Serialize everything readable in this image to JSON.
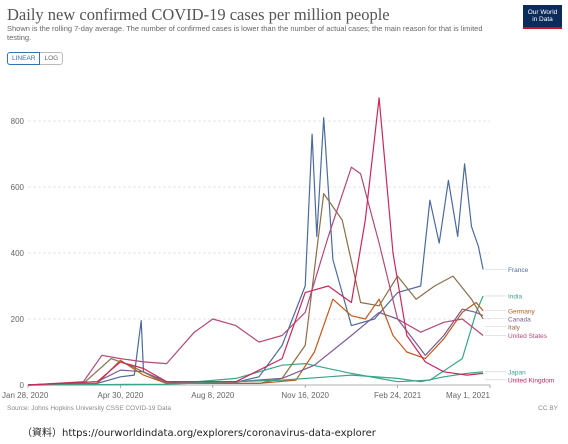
{
  "header": {
    "title": "Daily new confirmed COVID-19 cases per million people",
    "subtitle": "Shown is the rolling 7-day average. The number of confirmed cases is lower than the number of actual cases; the main reason for that is limited testing.",
    "logo_line1": "Our World",
    "logo_line2": "in Data"
  },
  "controls": {
    "linear_label": "LINEAR",
    "log_label": "LOG",
    "selected": "linear"
  },
  "footer": {
    "source": "Source: Johns Hopkins University CSSE COVID-19 Data",
    "license": "CC BY",
    "note": "（資料）https://ourworldindata.org/explorers/coronavirus-data-explorer"
  },
  "chart_data": {
    "type": "line",
    "title": "Daily new confirmed COVID-19 cases per million people",
    "xlabel": "",
    "ylabel": "",
    "ylim": [
      0,
      900
    ],
    "y_ticks": [
      0,
      200,
      400,
      600,
      800
    ],
    "x_ticks": [
      "Jan 28, 2020",
      "Apr 30, 2020",
      "Aug 8, 2020",
      "Nov 16, 2020",
      "Feb 24, 2021",
      "May 1, 2021"
    ],
    "grid": "horizontal",
    "legend": "right, end of lines",
    "series": [
      {
        "name": "France",
        "color": "#4c6a9c",
        "points": [
          [
            0,
            0
          ],
          [
            0.14,
            1
          ],
          [
            0.2,
            25
          ],
          [
            0.23,
            30
          ],
          [
            0.245,
            195
          ],
          [
            0.25,
            40
          ],
          [
            0.29,
            10
          ],
          [
            0.35,
            5
          ],
          [
            0.44,
            5
          ],
          [
            0.5,
            25
          ],
          [
            0.55,
            120
          ],
          [
            0.6,
            300
          ],
          [
            0.615,
            760
          ],
          [
            0.625,
            450
          ],
          [
            0.64,
            810
          ],
          [
            0.66,
            380
          ],
          [
            0.7,
            180
          ],
          [
            0.75,
            200
          ],
          [
            0.8,
            280
          ],
          [
            0.85,
            300
          ],
          [
            0.87,
            560
          ],
          [
            0.89,
            430
          ],
          [
            0.91,
            620
          ],
          [
            0.93,
            450
          ],
          [
            0.945,
            670
          ],
          [
            0.96,
            480
          ],
          [
            0.975,
            420
          ],
          [
            0.985,
            350
          ]
        ]
      },
      {
        "name": "India",
        "color": "#3aa58a",
        "points": [
          [
            0,
            0
          ],
          [
            0.3,
            2
          ],
          [
            0.45,
            20
          ],
          [
            0.55,
            60
          ],
          [
            0.6,
            65
          ],
          [
            0.7,
            35
          ],
          [
            0.8,
            10
          ],
          [
            0.87,
            15
          ],
          [
            0.94,
            80
          ],
          [
            0.97,
            220
          ],
          [
            0.985,
            270
          ]
        ]
      },
      {
        "name": "Germany",
        "color": "#c05a1e",
        "points": [
          [
            0,
            0
          ],
          [
            0.15,
            5
          ],
          [
            0.2,
            75
          ],
          [
            0.25,
            30
          ],
          [
            0.3,
            5
          ],
          [
            0.5,
            5
          ],
          [
            0.58,
            15
          ],
          [
            0.62,
            100
          ],
          [
            0.66,
            260
          ],
          [
            0.7,
            210
          ],
          [
            0.73,
            200
          ],
          [
            0.76,
            260
          ],
          [
            0.79,
            150
          ],
          [
            0.82,
            100
          ],
          [
            0.86,
            80
          ],
          [
            0.9,
            140
          ],
          [
            0.94,
            220
          ],
          [
            0.97,
            250
          ],
          [
            0.985,
            225
          ]
        ]
      },
      {
        "name": "Canada",
        "color": "#7a5c95",
        "points": [
          [
            0,
            0
          ],
          [
            0.15,
            10
          ],
          [
            0.2,
            45
          ],
          [
            0.25,
            40
          ],
          [
            0.3,
            10
          ],
          [
            0.45,
            10
          ],
          [
            0.55,
            20
          ],
          [
            0.62,
            60
          ],
          [
            0.7,
            150
          ],
          [
            0.76,
            220
          ],
          [
            0.8,
            200
          ],
          [
            0.86,
            90
          ],
          [
            0.9,
            150
          ],
          [
            0.94,
            230
          ],
          [
            0.97,
            220
          ],
          [
            0.985,
            210
          ]
        ]
      },
      {
        "name": "Italy",
        "color": "#8c6e4a",
        "points": [
          [
            0,
            0
          ],
          [
            0.12,
            5
          ],
          [
            0.18,
            80
          ],
          [
            0.22,
            60
          ],
          [
            0.3,
            5
          ],
          [
            0.5,
            5
          ],
          [
            0.55,
            20
          ],
          [
            0.6,
            120
          ],
          [
            0.64,
            580
          ],
          [
            0.68,
            500
          ],
          [
            0.72,
            250
          ],
          [
            0.76,
            240
          ],
          [
            0.8,
            330
          ],
          [
            0.84,
            260
          ],
          [
            0.88,
            300
          ],
          [
            0.92,
            330
          ],
          [
            0.96,
            260
          ],
          [
            0.985,
            200
          ]
        ]
      },
      {
        "name": "United States",
        "color": "#b04a7a",
        "points": [
          [
            0,
            0
          ],
          [
            0.12,
            10
          ],
          [
            0.16,
            90
          ],
          [
            0.2,
            80
          ],
          [
            0.25,
            70
          ],
          [
            0.3,
            65
          ],
          [
            0.36,
            160
          ],
          [
            0.4,
            200
          ],
          [
            0.45,
            180
          ],
          [
            0.5,
            130
          ],
          [
            0.55,
            150
          ],
          [
            0.6,
            220
          ],
          [
            0.65,
            450
          ],
          [
            0.7,
            660
          ],
          [
            0.72,
            640
          ],
          [
            0.76,
            430
          ],
          [
            0.8,
            200
          ],
          [
            0.85,
            160
          ],
          [
            0.9,
            190
          ],
          [
            0.94,
            200
          ],
          [
            0.985,
            150
          ]
        ]
      },
      {
        "name": "Japan",
        "color": "#3aa58a",
        "points": [
          [
            0,
            0
          ],
          [
            0.3,
            2
          ],
          [
            0.4,
            8
          ],
          [
            0.55,
            15
          ],
          [
            0.65,
            25
          ],
          [
            0.7,
            30
          ],
          [
            0.8,
            20
          ],
          [
            0.85,
            10
          ],
          [
            0.9,
            25
          ],
          [
            0.95,
            35
          ],
          [
            0.985,
            40
          ]
        ]
      },
      {
        "name": "United Kingdom",
        "color": "#c8285a",
        "points": [
          [
            0,
            0
          ],
          [
            0.15,
            10
          ],
          [
            0.2,
            70
          ],
          [
            0.25,
            50
          ],
          [
            0.3,
            10
          ],
          [
            0.45,
            10
          ],
          [
            0.55,
            80
          ],
          [
            0.6,
            280
          ],
          [
            0.65,
            300
          ],
          [
            0.7,
            250
          ],
          [
            0.73,
            500
          ],
          [
            0.76,
            870
          ],
          [
            0.79,
            400
          ],
          [
            0.82,
            150
          ],
          [
            0.86,
            70
          ],
          [
            0.9,
            40
          ],
          [
            0.95,
            30
          ],
          [
            0.985,
            35
          ]
        ]
      }
    ]
  }
}
